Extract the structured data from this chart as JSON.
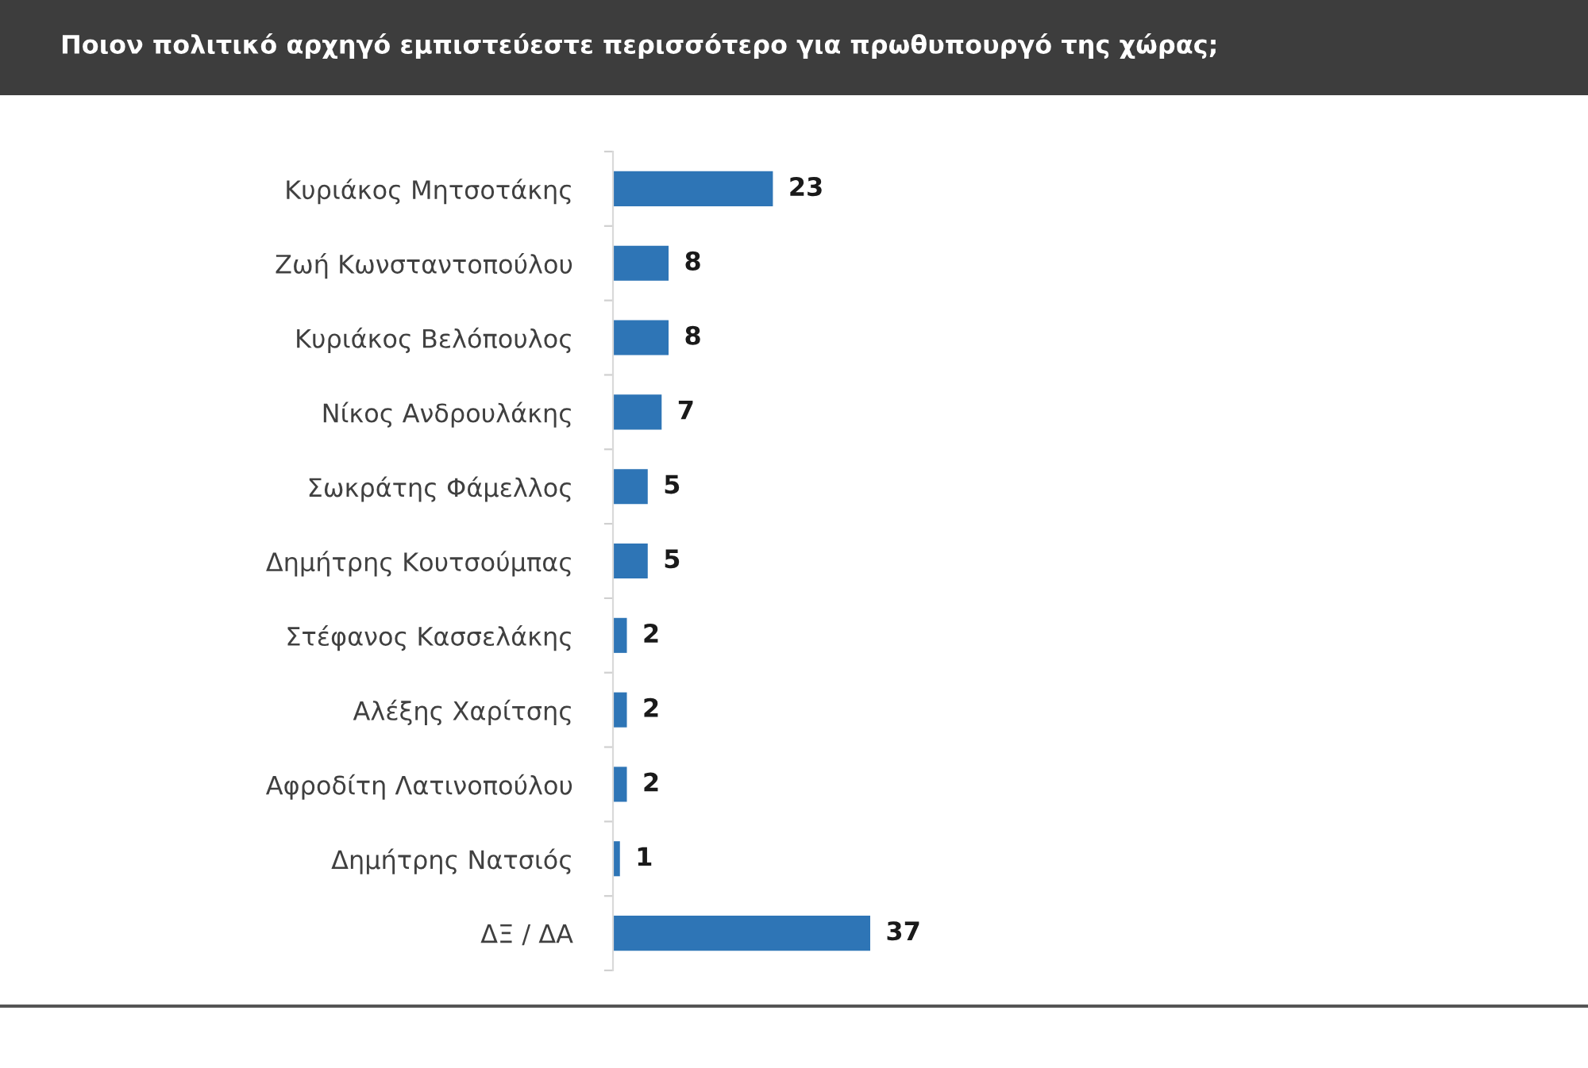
{
  "chart_data": {
    "type": "bar",
    "orientation": "horizontal",
    "title": "Ποιον πολιτικό αρχηγό εμπιστεύεστε περισσότερο για πρωθυπουργό της χώρας;",
    "categories": [
      "Κυριάκος Μητσοτάκης",
      "Ζωή Κωνσταντοπούλου",
      "Κυριάκος Βελόπουλος",
      "Νίκος Ανδρουλάκης",
      "Σωκράτης Φάμελλος",
      "Δημήτρης Κουτσούμπας",
      "Στέφανος Κασσελάκης",
      "Αλέξης Χαρίτσης",
      "Αφροδίτη Λατινοπούλου",
      "Δημήτρης Νατσιός",
      "ΔΞ / ΔΑ"
    ],
    "values": [
      23,
      8,
      8,
      7,
      5,
      5,
      2,
      2,
      2,
      1,
      37
    ],
    "color": "#2e75b6",
    "data_labels": true,
    "tick_labels": "y"
  }
}
